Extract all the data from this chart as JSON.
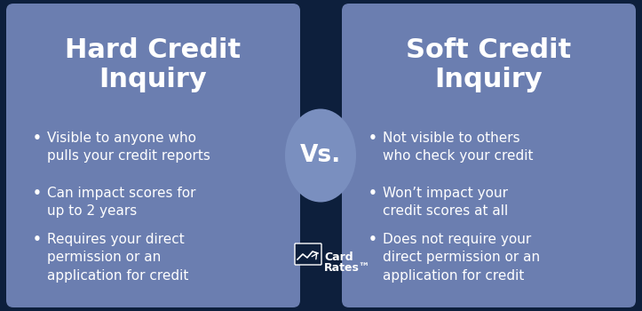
{
  "background_color": "#0d1f3c",
  "panel_color": "#6b7eb0",
  "vs_circle_color": "#7a8fbf",
  "title_color": "#ffffff",
  "text_color": "#ffffff",
  "left_title_line1": "Hard Credit",
  "left_title_line2": "Inquiry",
  "right_title_line1": "Soft Credit",
  "right_title_line2": "Inquiry",
  "vs_text": "Vs.",
  "left_bullets": [
    "Visible to anyone who\npulls your credit reports",
    "Can impact scores for\nup to 2 years",
    "Requires your direct\npermission or an\napplication for credit"
  ],
  "right_bullets": [
    "Not visible to others\nwho check your credit",
    "Won’t impact your\ncredit scores at all",
    "Does not require your\ndirect permission or an\napplication for credit"
  ],
  "logo_line1": "Card",
  "logo_line2": "Rates™"
}
